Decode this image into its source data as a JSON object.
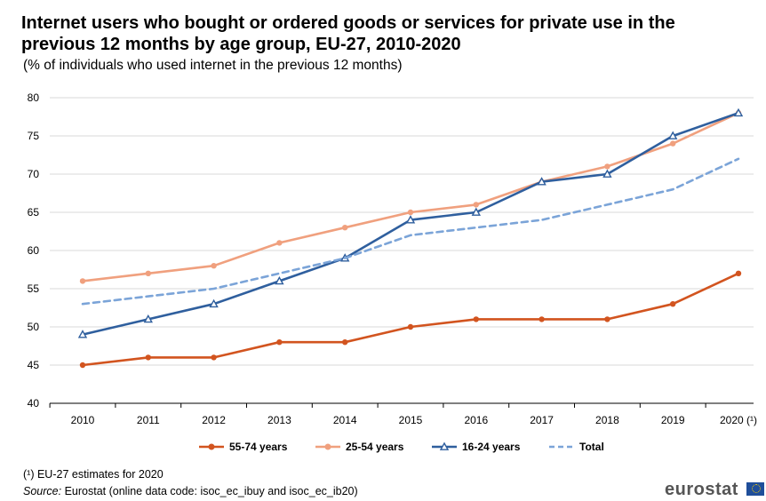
{
  "header": {
    "title": "Internet users who bought or ordered goods or services for private use in the previous 12 months by age group, EU-27, 2010-2020",
    "subtitle": "(% of individuals who used internet in the previous 12 months)"
  },
  "footer": {
    "footnote": "(¹) EU-27 estimates for 2020",
    "source_label": "Source:",
    "source_text": "Eurostat (online data code:  isoc_ec_ibuy and isoc_ec_ib20)",
    "brand": "eurostat"
  },
  "chart_data": {
    "type": "line",
    "categories": [
      "2010",
      "2011",
      "2012",
      "2013",
      "2014",
      "2015",
      "2016",
      "2017",
      "2018",
      "2019",
      "2020 (¹)"
    ],
    "ylim": [
      40,
      80
    ],
    "yticks": [
      40,
      45,
      50,
      55,
      60,
      65,
      70,
      75,
      80
    ],
    "grid": true,
    "legend_position": "bottom",
    "series": [
      {
        "name": "55-74 years",
        "color": "#d2541f",
        "style": "solid",
        "marker": "circle",
        "values": [
          45,
          46,
          46,
          48,
          48,
          50,
          51,
          51,
          51,
          53,
          57
        ]
      },
      {
        "name": "25-54 years",
        "color": "#f0a07e",
        "style": "solid",
        "marker": "circle",
        "values": [
          56,
          57,
          58,
          61,
          63,
          65,
          66,
          69,
          71,
          74,
          78
        ]
      },
      {
        "name": "16-24 years",
        "color": "#2f5f9e",
        "style": "solid",
        "marker": "triangle",
        "values": [
          49,
          51,
          53,
          56,
          59,
          64,
          65,
          69,
          70,
          75,
          78
        ]
      },
      {
        "name": "Total",
        "color": "#7ba4d8",
        "style": "dashed",
        "marker": "none",
        "values": [
          53,
          54,
          55,
          57,
          59,
          62,
          63,
          64,
          66,
          68,
          72
        ]
      }
    ]
  }
}
